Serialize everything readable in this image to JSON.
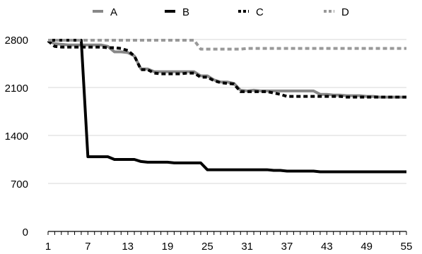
{
  "chart_data": {
    "type": "line",
    "x": [
      1,
      2,
      3,
      4,
      5,
      6,
      7,
      8,
      9,
      10,
      11,
      12,
      13,
      14,
      15,
      16,
      17,
      18,
      19,
      20,
      21,
      22,
      23,
      24,
      25,
      26,
      27,
      28,
      29,
      30,
      31,
      32,
      33,
      34,
      35,
      36,
      37,
      38,
      39,
      40,
      41,
      42,
      43,
      44,
      45,
      46,
      47,
      48,
      49,
      50,
      51,
      52,
      53,
      54,
      55
    ],
    "x_ticks": [
      1,
      7,
      13,
      19,
      25,
      31,
      37,
      43,
      49,
      55
    ],
    "y_ticks": [
      0,
      700,
      1400,
      2100,
      2800
    ],
    "ylim": [
      0,
      2800
    ],
    "grid": true,
    "legend_position": "top",
    "series": [
      {
        "name": "A",
        "color": "#888888",
        "dash": "solid",
        "values": [
          2780,
          2740,
          2730,
          2720,
          2720,
          2720,
          2720,
          2720,
          2720,
          2700,
          2620,
          2620,
          2610,
          2560,
          2370,
          2370,
          2330,
          2330,
          2330,
          2330,
          2330,
          2330,
          2330,
          2270,
          2270,
          2210,
          2180,
          2180,
          2160,
          2060,
          2050,
          2060,
          2050,
          2050,
          2050,
          2050,
          2050,
          2050,
          2050,
          2050,
          2050,
          2000,
          2000,
          1990,
          1990,
          1980,
          1980,
          1980,
          1970,
          1970,
          1960,
          1960,
          1960,
          1960,
          1960
        ]
      },
      {
        "name": "B",
        "color": "#000000",
        "dash": "solid",
        "values": [
          2790,
          2790,
          2790,
          2790,
          2790,
          2790,
          1090,
          1090,
          1090,
          1090,
          1050,
          1050,
          1050,
          1050,
          1020,
          1010,
          1010,
          1010,
          1010,
          1000,
          1000,
          1000,
          1000,
          1000,
          900,
          900,
          900,
          900,
          900,
          900,
          900,
          900,
          900,
          900,
          890,
          890,
          880,
          880,
          880,
          880,
          880,
          870,
          870,
          870,
          870,
          870,
          870,
          870,
          870,
          870,
          870,
          870,
          870,
          870,
          870
        ]
      },
      {
        "name": "C",
        "color": "#000000",
        "dash": "dash",
        "values": [
          2780,
          2700,
          2690,
          2690,
          2690,
          2690,
          2690,
          2690,
          2690,
          2680,
          2680,
          2670,
          2640,
          2560,
          2360,
          2360,
          2310,
          2300,
          2300,
          2300,
          2300,
          2310,
          2310,
          2250,
          2250,
          2200,
          2170,
          2160,
          2150,
          2040,
          2040,
          2040,
          2040,
          2040,
          2020,
          2000,
          1970,
          1970,
          1970,
          1970,
          1970,
          1970,
          1970,
          1970,
          1970,
          1960,
          1960,
          1960,
          1960,
          1960,
          1960,
          1960,
          1960,
          1960,
          1960
        ]
      },
      {
        "name": "D",
        "color": "#999999",
        "dash": "dash",
        "values": [
          2790,
          2790,
          2790,
          2790,
          2790,
          2790,
          2790,
          2790,
          2790,
          2790,
          2790,
          2790,
          2790,
          2790,
          2790,
          2790,
          2790,
          2790,
          2790,
          2790,
          2790,
          2790,
          2790,
          2660,
          2660,
          2660,
          2660,
          2660,
          2660,
          2660,
          2670,
          2670,
          2670,
          2670,
          2670,
          2670,
          2670,
          2670,
          2670,
          2670,
          2670,
          2670,
          2670,
          2670,
          2670,
          2670,
          2670,
          2670,
          2670,
          2670,
          2670,
          2670,
          2670,
          2670,
          2670
        ]
      }
    ]
  }
}
